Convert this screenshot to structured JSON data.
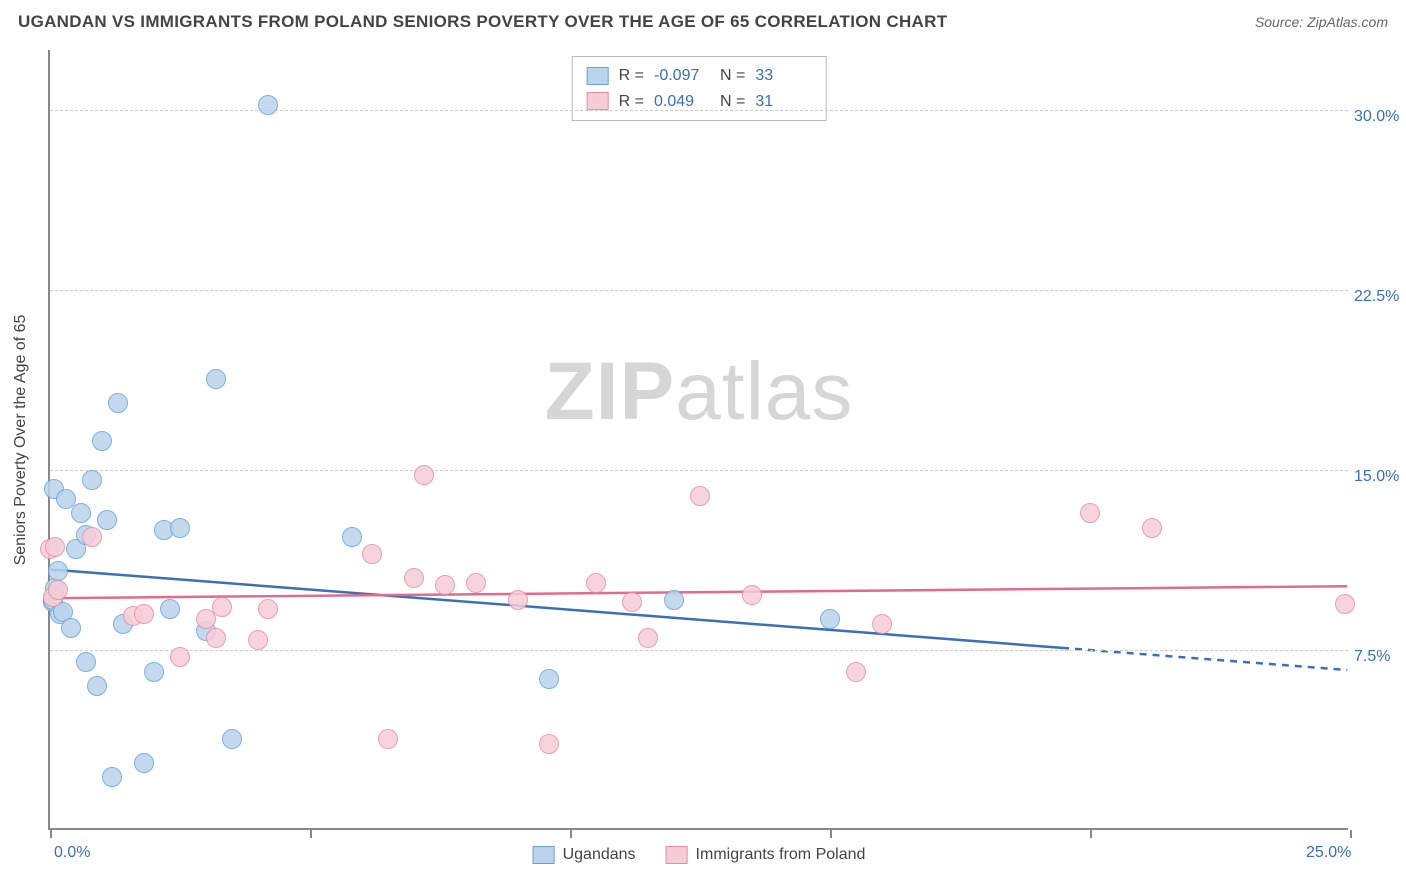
{
  "title": "UGANDAN VS IMMIGRANTS FROM POLAND SENIORS POVERTY OVER THE AGE OF 65 CORRELATION CHART",
  "source": "Source: ZipAtlas.com",
  "watermark_a": "ZIP",
  "watermark_b": "atlas",
  "ylabel": "Seniors Poverty Over the Age of 65",
  "chart": {
    "type": "scatter",
    "plot_bg": "#ffffff",
    "grid_color": "#cccccc",
    "axis_color": "#888888",
    "x_range": [
      0,
      25
    ],
    "y_range": [
      0,
      32.5
    ],
    "x_ticks": [
      0,
      5,
      10,
      15,
      20,
      25
    ],
    "x_tick_labels": {
      "0": "0.0%",
      "25": "25.0%"
    },
    "y_gridlines": [
      7.5,
      15.0,
      22.5,
      30.0
    ],
    "y_tick_labels": {
      "7.5": "7.5%",
      "15.0": "15.0%",
      "22.5": "22.5%",
      "30.0": "30.0%"
    },
    "marker_radius": 10,
    "marker_border_width": 1.5,
    "line_width": 2.5,
    "series": [
      {
        "name": "Ugandans",
        "fill": "#b9d4ec",
        "stroke": "#6ba3d6",
        "line_color": "#3b6fb6",
        "R": "-0.097",
        "N": "33",
        "trend": {
          "x1": 0,
          "y1": 10.8,
          "x2": 25,
          "y2": 6.6,
          "dash_after_x": 19.5
        },
        "points": [
          [
            0.05,
            9.5
          ],
          [
            0.05,
            9.6
          ],
          [
            0.08,
            14.2
          ],
          [
            0.1,
            10.1
          ],
          [
            0.15,
            10.8
          ],
          [
            0.2,
            9.0
          ],
          [
            0.25,
            9.1
          ],
          [
            0.3,
            13.8
          ],
          [
            0.4,
            8.4
          ],
          [
            0.5,
            11.7
          ],
          [
            0.6,
            13.2
          ],
          [
            0.7,
            7.0
          ],
          [
            0.7,
            12.3
          ],
          [
            0.8,
            14.6
          ],
          [
            0.9,
            6.0
          ],
          [
            1.0,
            16.2
          ],
          [
            1.1,
            12.9
          ],
          [
            1.2,
            2.2
          ],
          [
            1.3,
            17.8
          ],
          [
            1.4,
            8.6
          ],
          [
            1.8,
            2.8
          ],
          [
            2.0,
            6.6
          ],
          [
            2.2,
            12.5
          ],
          [
            2.3,
            9.2
          ],
          [
            2.5,
            12.6
          ],
          [
            3.0,
            8.3
          ],
          [
            3.2,
            18.8
          ],
          [
            3.5,
            3.8
          ],
          [
            4.2,
            30.2
          ],
          [
            5.8,
            12.2
          ],
          [
            9.6,
            6.3
          ],
          [
            12.0,
            9.6
          ],
          [
            15.0,
            8.8
          ]
        ]
      },
      {
        "name": "Immigrants from Poland",
        "fill": "#f6cdd7",
        "stroke": "#e58fa6",
        "line_color": "#e26a8a",
        "R": "0.049",
        "N": "31",
        "trend": {
          "x1": 0,
          "y1": 9.6,
          "x2": 25,
          "y2": 10.1,
          "dash_after_x": 25
        },
        "points": [
          [
            0.0,
            11.7
          ],
          [
            0.05,
            9.7
          ],
          [
            0.1,
            11.8
          ],
          [
            0.15,
            10.0
          ],
          [
            0.8,
            12.2
          ],
          [
            1.6,
            8.9
          ],
          [
            1.8,
            9.0
          ],
          [
            2.5,
            7.2
          ],
          [
            3.0,
            8.8
          ],
          [
            3.2,
            8.0
          ],
          [
            3.3,
            9.3
          ],
          [
            4.0,
            7.9
          ],
          [
            4.2,
            9.2
          ],
          [
            6.2,
            11.5
          ],
          [
            6.5,
            3.8
          ],
          [
            7.0,
            10.5
          ],
          [
            7.2,
            14.8
          ],
          [
            7.6,
            10.2
          ],
          [
            8.2,
            10.3
          ],
          [
            9.0,
            9.6
          ],
          [
            9.6,
            3.6
          ],
          [
            10.5,
            10.3
          ],
          [
            11.2,
            9.5
          ],
          [
            11.5,
            8.0
          ],
          [
            12.5,
            13.9
          ],
          [
            13.5,
            9.8
          ],
          [
            15.5,
            6.6
          ],
          [
            16.0,
            8.6
          ],
          [
            20.0,
            13.2
          ],
          [
            21.2,
            12.6
          ],
          [
            24.9,
            9.4
          ]
        ]
      }
    ]
  }
}
